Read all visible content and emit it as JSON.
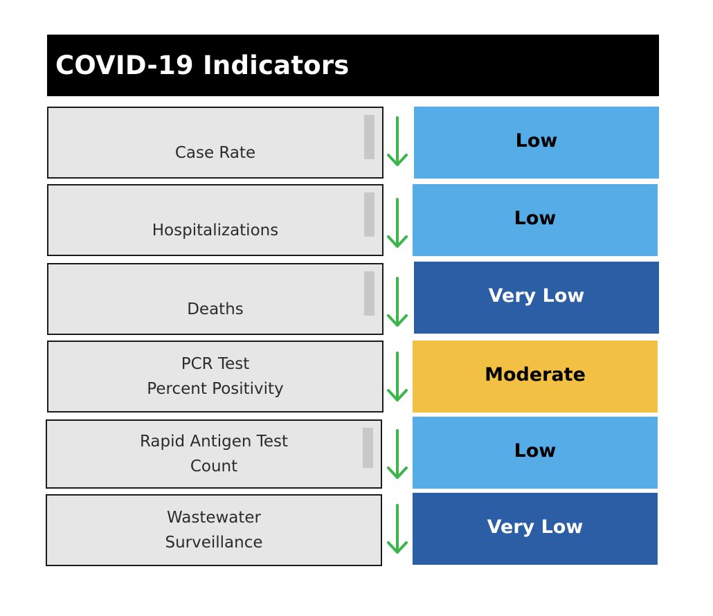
{
  "title": "COVID-19 Indicators",
  "colors": {
    "low": "#56ace6",
    "very_low": "#2b5ea4",
    "moderate": "#f2c043",
    "arrow": "#3cb54a"
  },
  "indicators": [
    {
      "label_lines": [
        "Case Rate"
      ],
      "trend_icon": "arrow-down-icon",
      "level": "Low"
    },
    {
      "label_lines": [
        "Hospitalizations"
      ],
      "trend_icon": "arrow-down-icon",
      "level": "Low"
    },
    {
      "label_lines": [
        "Deaths"
      ],
      "trend_icon": "arrow-down-icon",
      "level": "Very Low"
    },
    {
      "label_lines": [
        "PCR Test",
        "Percent Positivity"
      ],
      "trend_icon": "arrow-down-icon",
      "level": "Moderate"
    },
    {
      "label_lines": [
        "Rapid Antigen Test",
        "Count"
      ],
      "trend_icon": "arrow-down-icon",
      "level": "Low"
    },
    {
      "label_lines": [
        "Wastewater",
        "Surveillance"
      ],
      "trend_icon": "arrow-down-icon",
      "level": "Very Low"
    }
  ]
}
